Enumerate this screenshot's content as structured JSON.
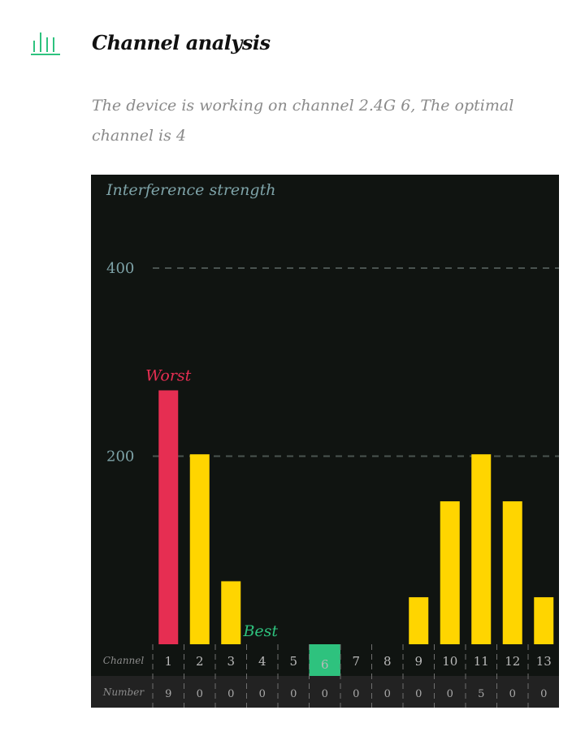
{
  "header": {
    "icon": "bar-chart-icon",
    "title": "Channel analysis",
    "description": "The device is working on channel 2.4G 6, The optimal channel is 4"
  },
  "colors": {
    "accent": "#2ec27e",
    "worst": "#e62e52",
    "bar": "#ffd500",
    "chart_bg": "#101411",
    "number_row_bg": "#222222",
    "current_bg": "#2ec27e"
  },
  "chart_data": {
    "type": "bar",
    "ylabel": "Interference strength",
    "ylim": [
      0,
      400
    ],
    "yticks": [
      200,
      400
    ],
    "grid": true,
    "categories": [
      "1",
      "2",
      "3",
      "4",
      "5",
      "6",
      "7",
      "8",
      "9",
      "10",
      "11",
      "12",
      "13"
    ],
    "values": [
      270,
      202,
      67,
      0,
      0,
      0,
      0,
      0,
      50,
      152,
      202,
      152,
      50
    ],
    "numbers": [
      "9",
      "0",
      "0",
      "0",
      "0",
      "0",
      "0",
      "0",
      "0",
      "0",
      "5",
      "0",
      "0"
    ],
    "worst_channel": "1",
    "best_channel": "4",
    "current_channel": "6",
    "worst_label": "Worst",
    "best_label": "Best",
    "row_labels": {
      "channel": "Channel",
      "number": "Number"
    }
  }
}
